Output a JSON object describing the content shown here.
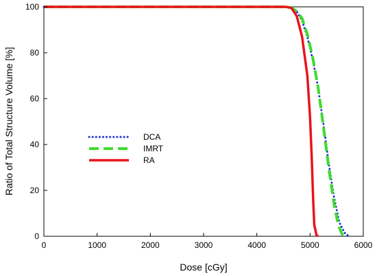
{
  "chart_data": {
    "type": "line",
    "title": "",
    "xlabel": "Dose [cGy]",
    "ylabel": "Ratio of Total Structure Volume [%]",
    "xlim": [
      0,
      6000
    ],
    "ylim": [
      0,
      100
    ],
    "x_ticks": [
      "0",
      "1000",
      "2000",
      "3000",
      "4000",
      "5000",
      "6000"
    ],
    "y_ticks": [
      "0",
      "20",
      "40",
      "60",
      "80",
      "100"
    ],
    "grid": false,
    "legend_position": "center-left",
    "series": [
      {
        "name": "DCA",
        "color": "#1f2fd6",
        "style": "dotted",
        "points": [
          [
            0,
            100
          ],
          [
            4500,
            100
          ],
          [
            4650,
            99.7
          ],
          [
            4750,
            98
          ],
          [
            4850,
            94
          ],
          [
            4950,
            87
          ],
          [
            5050,
            77
          ],
          [
            5150,
            65
          ],
          [
            5250,
            49
          ],
          [
            5350,
            32
          ],
          [
            5450,
            17
          ],
          [
            5550,
            6
          ],
          [
            5650,
            1.5
          ],
          [
            5730,
            0
          ]
        ]
      },
      {
        "name": "IMRT",
        "color": "#3ddc2e",
        "style": "dashed",
        "points": [
          [
            0,
            100
          ],
          [
            4500,
            100
          ],
          [
            4650,
            99.7
          ],
          [
            4750,
            98
          ],
          [
            4850,
            95
          ],
          [
            4950,
            88
          ],
          [
            5050,
            78
          ],
          [
            5150,
            65
          ],
          [
            5250,
            48
          ],
          [
            5350,
            30
          ],
          [
            5450,
            14
          ],
          [
            5530,
            5
          ],
          [
            5600,
            1
          ],
          [
            5650,
            0
          ]
        ]
      },
      {
        "name": "RA",
        "color": "#e8141b",
        "style": "solid",
        "points": [
          [
            0,
            100
          ],
          [
            4550,
            100
          ],
          [
            4650,
            99.5
          ],
          [
            4750,
            96
          ],
          [
            4850,
            87
          ],
          [
            4950,
            70
          ],
          [
            5000,
            52
          ],
          [
            5030,
            35
          ],
          [
            5060,
            15
          ],
          [
            5080,
            5
          ],
          [
            5120,
            0.5
          ],
          [
            5150,
            0
          ]
        ]
      }
    ]
  }
}
